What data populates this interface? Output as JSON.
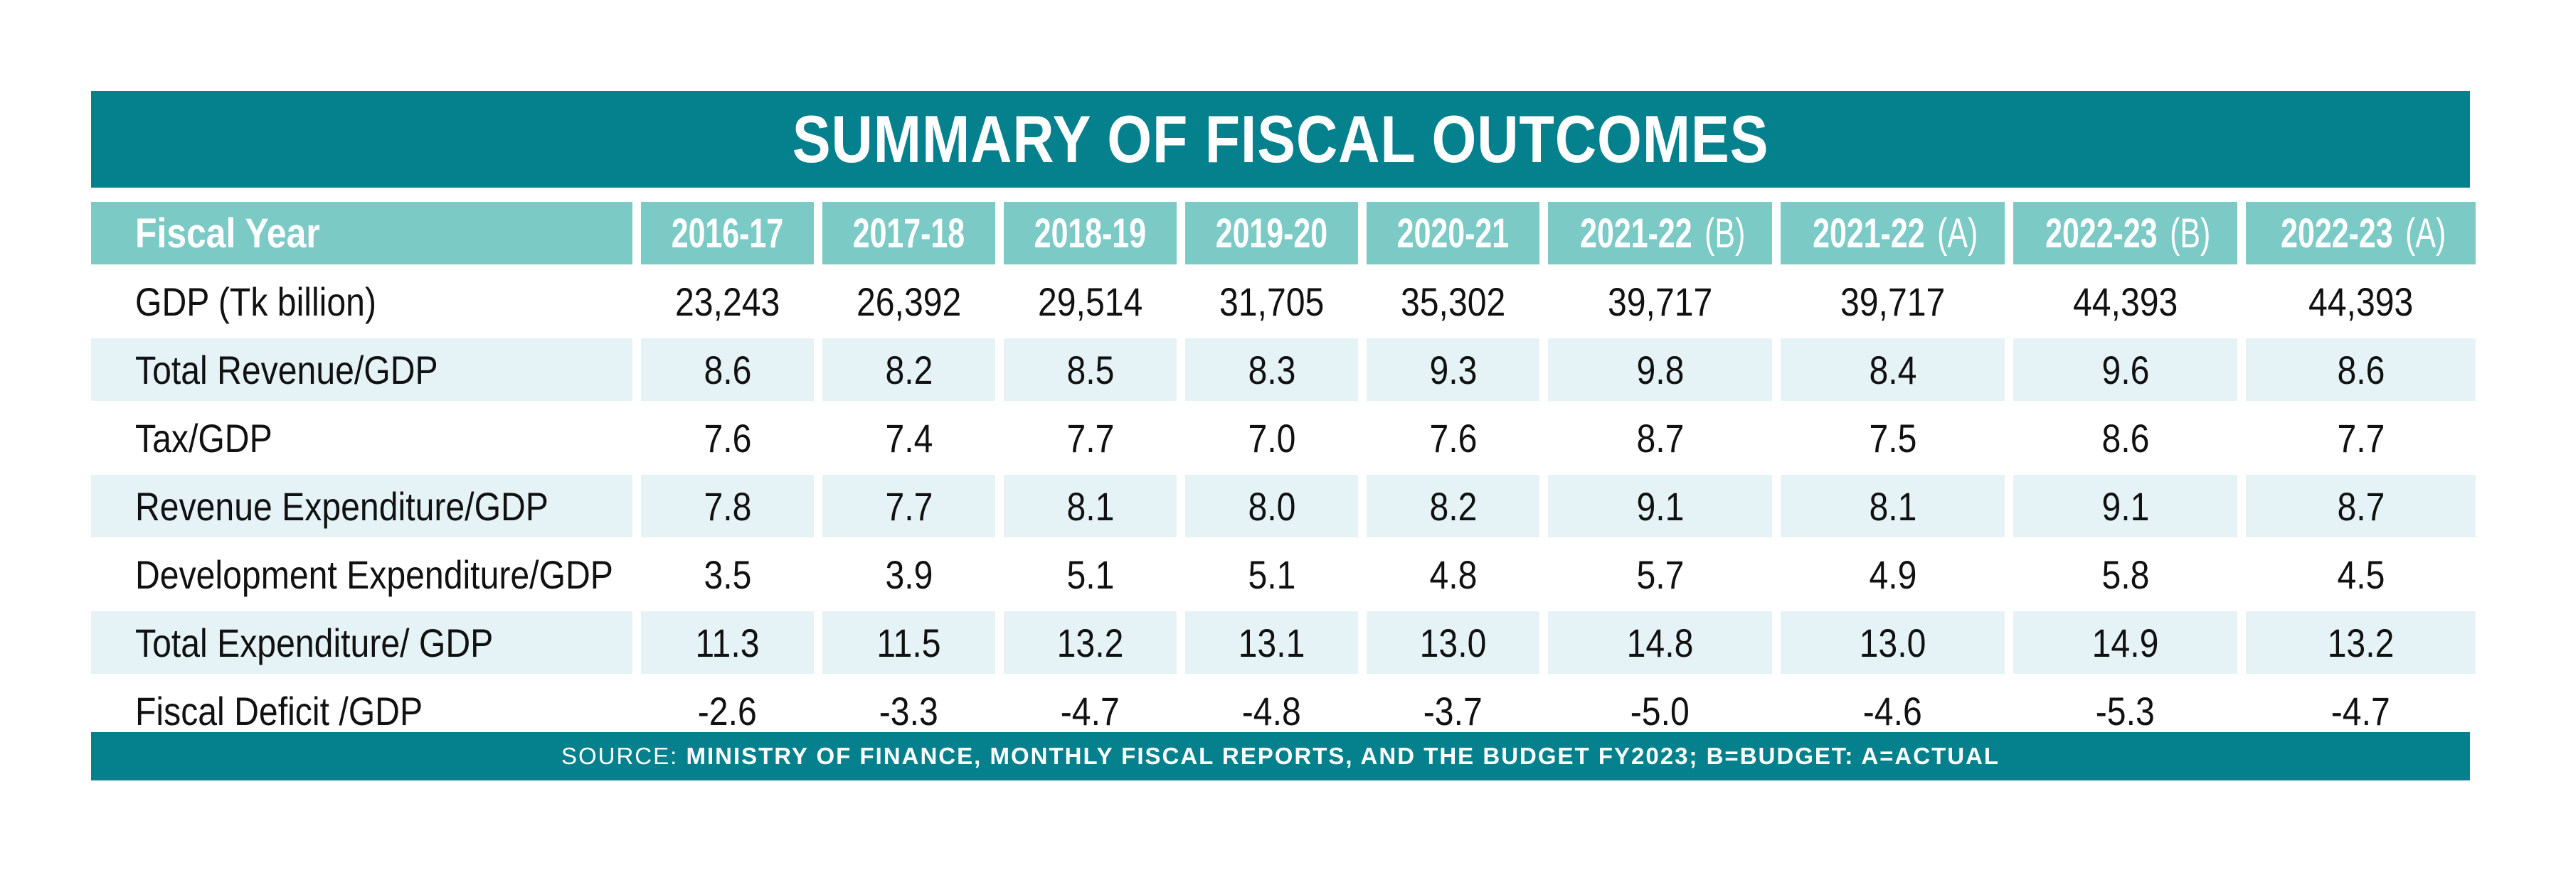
{
  "title": "SUMMARY OF FISCAL OUTCOMES",
  "header": {
    "label": "Fiscal Year",
    "years": [
      {
        "main": "2016-17",
        "suffix": ""
      },
      {
        "main": "2017-18",
        "suffix": ""
      },
      {
        "main": "2018-19",
        "suffix": ""
      },
      {
        "main": "2019-20",
        "suffix": ""
      },
      {
        "main": "2020-21",
        "suffix": ""
      },
      {
        "main": "2021-22",
        "suffix": " (B)"
      },
      {
        "main": "2021-22",
        "suffix": " (A)"
      },
      {
        "main": "2022-23",
        "suffix": " (B)"
      },
      {
        "main": "2022-23",
        "suffix": " (A)"
      }
    ]
  },
  "rows": [
    {
      "label": "GDP (Tk billion)",
      "values": [
        "23,243",
        "26,392",
        "29,514",
        "31,705",
        "35,302",
        "39,717",
        "39,717",
        "44,393",
        "44,393"
      ]
    },
    {
      "label": "Total Revenue/GDP",
      "values": [
        "8.6",
        "8.2",
        "8.5",
        "8.3",
        "9.3",
        "9.8",
        "8.4",
        "9.6",
        "8.6"
      ]
    },
    {
      "label": "Tax/GDP",
      "values": [
        "7.6",
        "7.4",
        "7.7",
        "7.0",
        "7.6",
        "8.7",
        "7.5",
        "8.6",
        "7.7"
      ]
    },
    {
      "label": "Revenue Expenditure/GDP",
      "values": [
        "7.8",
        "7.7",
        "8.1",
        "8.0",
        "8.2",
        "9.1",
        "8.1",
        "9.1",
        "8.7"
      ]
    },
    {
      "label": "Development Expenditure/GDP",
      "values": [
        "3.5",
        "3.9",
        "5.1",
        "5.1",
        "4.8",
        "5.7",
        "4.9",
        "5.8",
        "4.5"
      ]
    },
    {
      "label": "Total Expenditure/ GDP",
      "values": [
        "11.3",
        "11.5",
        "13.2",
        "13.1",
        "13.0",
        "14.8",
        "13.0",
        "14.9",
        "13.2"
      ]
    },
    {
      "label": "Fiscal Deficit /GDP",
      "values": [
        "-2.6",
        "-3.3",
        "-4.7",
        "-4.8",
        "-3.7",
        "-5.0",
        "-4.6",
        "-5.3",
        "-4.7"
      ]
    }
  ],
  "source": {
    "prefix": "SOURCE: ",
    "text": "MINISTRY OF FINANCE, MONTHLY FISCAL REPORTS, AND THE BUDGET FY2023; B=BUDGET: A=ACTUAL"
  },
  "colors": {
    "teal_dark": "#05818d",
    "teal_light": "#7bcac6",
    "row_shade": "#e6f3f6"
  }
}
